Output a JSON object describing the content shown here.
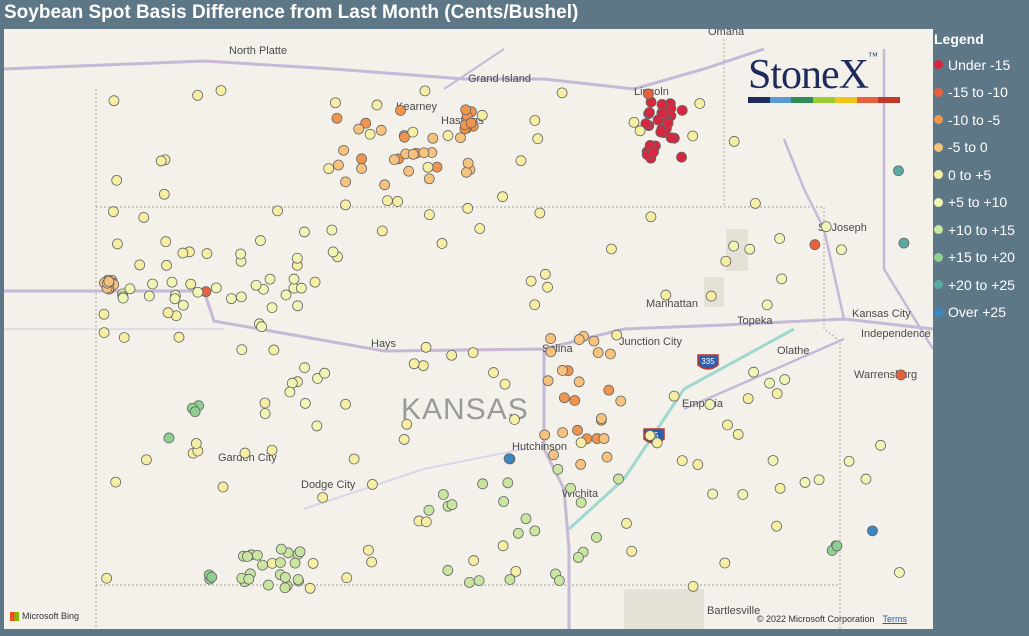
{
  "title": "Soybean Spot Basis Difference from Last Month (Cents/Bushel)",
  "legend": {
    "title": "Legend",
    "items": [
      {
        "label": "Under -15",
        "color": "#d7263d"
      },
      {
        "label": "-15 to -10",
        "color": "#e8603c"
      },
      {
        "label": "-10 to -5",
        "color": "#f0954e"
      },
      {
        "label": "-5 to 0",
        "color": "#f7c27e"
      },
      {
        "label": "0 to +5",
        "color": "#f6efa3"
      },
      {
        "label": "+5 to +10",
        "color": "#eef5b5"
      },
      {
        "label": "+10 to +15",
        "color": "#c9e6a0"
      },
      {
        "label": "+15 to +20",
        "color": "#8fcf8f"
      },
      {
        "label": "+20 to +25",
        "color": "#5aa9a2"
      },
      {
        "label": "Over +25",
        "color": "#3b87c4"
      }
    ]
  },
  "map": {
    "state_label": "KANSAS",
    "cities": [
      "North Platte",
      "Grand Island",
      "Kearney",
      "Hastings",
      "Lincoln",
      "Omaha",
      "St Joseph",
      "Manhattan",
      "Kansas City",
      "Independence",
      "Topeka",
      "Olathe",
      "Junction City",
      "Salina",
      "Hays",
      "Emporia",
      "Warrensburg",
      "Hutchinson",
      "Garden City",
      "Dodge City",
      "Wichita",
      "Bartlesville"
    ],
    "highways": [
      "335",
      "35"
    ],
    "attribution": "Microsoft Bing",
    "copyright": "© 2022 Microsoft Corporation",
    "terms": "Terms"
  },
  "logo": {
    "text": "StoneX",
    "trademark": "™",
    "colors": [
      "#1e2b5c",
      "#5b9bd5",
      "#2e8b57",
      "#9acd32",
      "#f0c419",
      "#e8603c",
      "#c0392b"
    ]
  },
  "points": [
    {
      "category": 0,
      "count": 30,
      "region": "Lincoln / SE Nebraska"
    },
    {
      "category": 1,
      "count": 4,
      "region": "scattered"
    },
    {
      "category": 2,
      "count": 25,
      "region": "south-central Nebraska"
    },
    {
      "category": 3,
      "count": 55,
      "region": "Nebraska / central Kansas"
    },
    {
      "category": 4,
      "count": 120,
      "region": "Kansas"
    },
    {
      "category": 5,
      "count": 60,
      "region": "western / eastern Kansas"
    },
    {
      "category": 6,
      "count": 45,
      "region": "south-central Kansas"
    },
    {
      "category": 7,
      "count": 10,
      "region": "southwest Kansas / Missouri"
    },
    {
      "category": 8,
      "count": 2,
      "region": "NW Missouri"
    },
    {
      "category": 9,
      "count": 3,
      "region": "Hutchinson / west Missouri"
    }
  ]
}
